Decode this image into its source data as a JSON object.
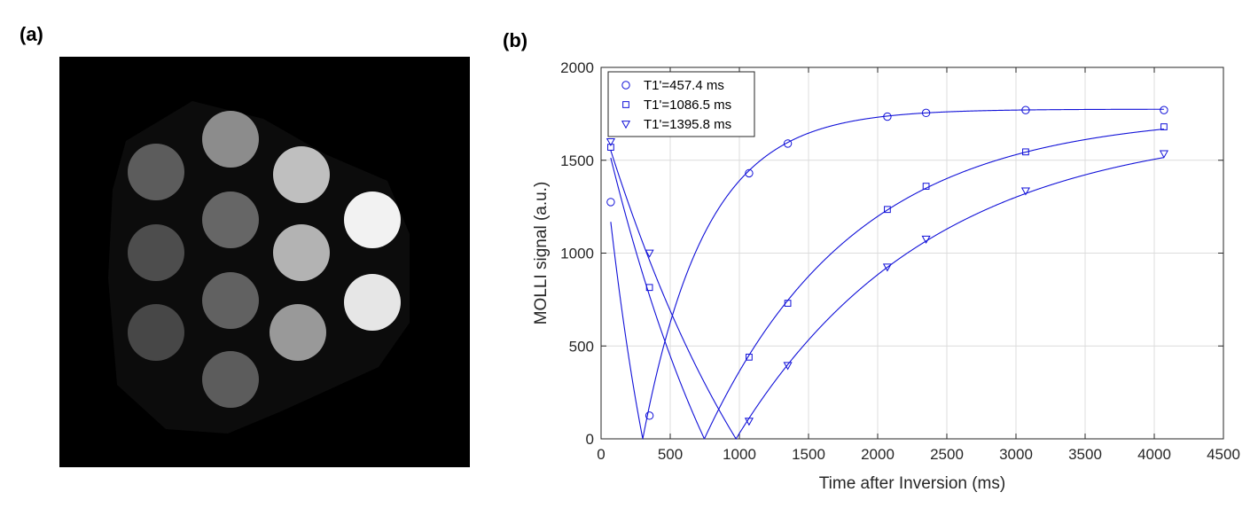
{
  "panels": {
    "a_label": "(a)",
    "b_label": "(b)"
  },
  "phantom": {
    "background": "#000000",
    "vials": [
      {
        "gray": 0.55
      },
      {
        "gray": 0.36
      },
      {
        "gray": 0.75
      },
      {
        "gray": 0.95
      },
      {
        "gray": 0.4
      },
      {
        "gray": 0.3
      },
      {
        "gray": 0.7
      },
      {
        "gray": 0.9
      },
      {
        "gray": 0.38
      },
      {
        "gray": 0.28
      },
      {
        "gray": 0.6
      },
      {
        "gray": 0.36
      }
    ]
  },
  "chart_data": {
    "type": "scatter",
    "xlabel": "Time after Inversion (ms)",
    "ylabel": "MOLLI signal (a.u.)",
    "xlim": [
      0,
      4500
    ],
    "ylim": [
      0,
      2000
    ],
    "xticks": [
      0,
      500,
      1000,
      1500,
      2000,
      2500,
      3000,
      3500,
      4000,
      4500
    ],
    "yticks": [
      0,
      500,
      1000,
      1500,
      2000
    ],
    "grid": true,
    "legend_position": "top-left",
    "color": "#1010d8",
    "series": [
      {
        "name": "T1'=457.4 ms",
        "marker": "circle",
        "x": [
          70,
          350,
          1070,
          1350,
          2070,
          2350,
          3070,
          4070
        ],
        "y": [
          1275,
          125,
          1430,
          1590,
          1735,
          1755,
          1770,
          1770
        ],
        "fit": {
          "A": 1775,
          "B": 3430,
          "T1": 457.4
        }
      },
      {
        "name": "T1'=1086.5 ms",
        "marker": "square",
        "x": [
          70,
          350,
          1070,
          1350,
          2070,
          2350,
          3070,
          4070
        ],
        "y": [
          1570,
          815,
          440,
          730,
          1235,
          1360,
          1545,
          1680
        ],
        "fit": {
          "A": 1750,
          "B": 3480,
          "T1": 1086.5
        }
      },
      {
        "name": "T1'=1395.8 ms",
        "marker": "triangle",
        "x": [
          70,
          350,
          1070,
          1350,
          2070,
          2350,
          3070,
          4070
        ],
        "y": [
          1600,
          1000,
          95,
          395,
          925,
          1075,
          1335,
          1535
        ],
        "fit": {
          "A": 1700,
          "B": 3420,
          "T1": 1395.8
        }
      }
    ]
  }
}
